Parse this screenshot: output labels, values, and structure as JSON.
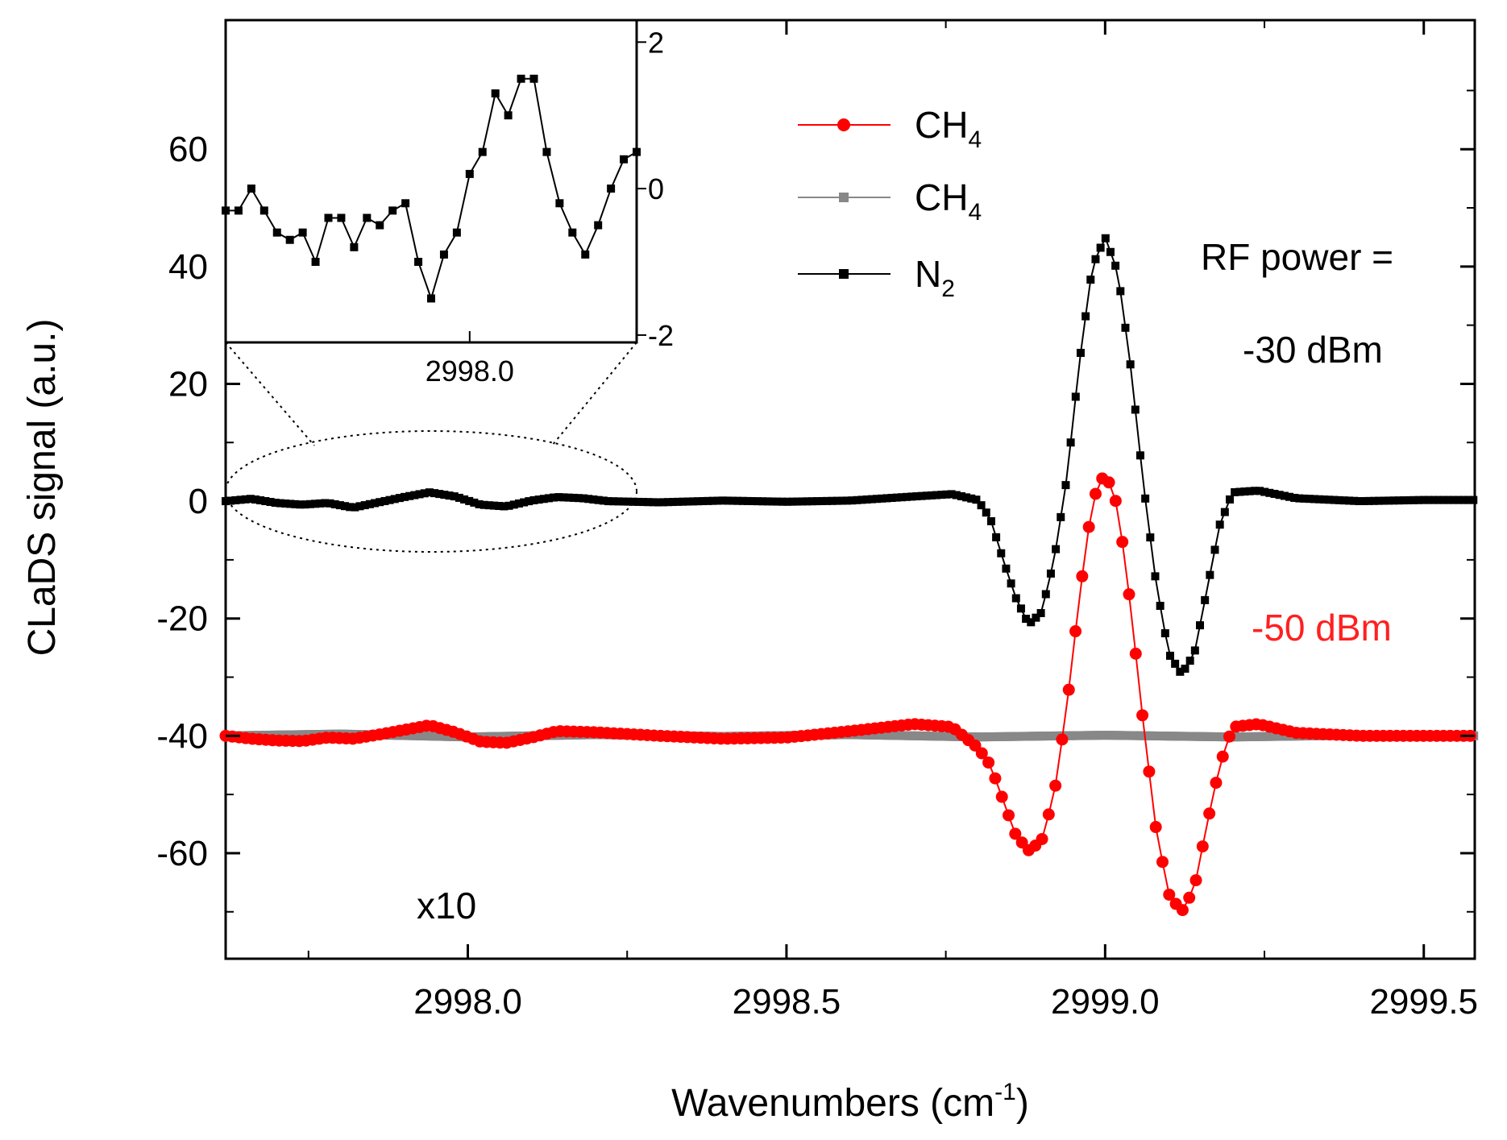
{
  "chart_data": {
    "type": "line",
    "xlabel": "Wavenumbers (cm",
    "xlabel_sup": "-1",
    "xlabel_close": ")",
    "ylabel": "CLaDS signal (a.u.)",
    "xlim": [
      2997.62,
      2999.58
    ],
    "ylim": [
      -78,
      82
    ],
    "x_ticks": [
      2998.0,
      2998.5,
      2999.0,
      2999.5
    ],
    "x_tick_labels": [
      "2998.0",
      "2998.5",
      "2999.0",
      "2999.5"
    ],
    "y_ticks": [
      -60,
      -40,
      -20,
      0,
      20,
      40,
      60
    ],
    "y_tick_labels": [
      "-60",
      "-40",
      "-20",
      "0",
      "20",
      "40",
      "60"
    ],
    "legend": [
      {
        "label": "CH",
        "sub": "4",
        "color": "#ff0000",
        "marker": "circle",
        "series": "CH4 (-50 dBm)"
      },
      {
        "label": "CH",
        "sub": "4",
        "color": "#888888",
        "marker": "square",
        "series": "CH4 (-30 dBm)"
      },
      {
        "label": "N",
        "sub": "2",
        "color": "#000000",
        "marker": "square",
        "series": "N2 (x10)"
      }
    ],
    "annotations": {
      "rf_power_label": "RF power =",
      "rf_power_high": "-30 dBm",
      "rf_power_low": "-50 dBm",
      "rf_power_low_color": "#ff2020",
      "scale_note": "x10"
    },
    "series": [
      {
        "name": "N2 (x10)",
        "color": "#000000",
        "marker": "square",
        "offset": 0,
        "points": [
          [
            2997.62,
            0.0
          ],
          [
            2997.66,
            0.4
          ],
          [
            2997.7,
            -0.3
          ],
          [
            2997.74,
            -0.6
          ],
          [
            2997.78,
            -0.3
          ],
          [
            2997.82,
            -1.1
          ],
          [
            2997.86,
            -0.2
          ],
          [
            2997.9,
            0.7
          ],
          [
            2997.94,
            1.5
          ],
          [
            2997.98,
            0.8
          ],
          [
            2998.02,
            -0.6
          ],
          [
            2998.06,
            -0.9
          ],
          [
            2998.1,
            0.1
          ],
          [
            2998.14,
            0.7
          ],
          [
            2998.18,
            0.5
          ],
          [
            2998.22,
            0.0
          ],
          [
            2998.3,
            -0.2
          ],
          [
            2998.4,
            0.1
          ],
          [
            2998.5,
            -0.1
          ],
          [
            2998.6,
            0.1
          ],
          [
            2998.7,
            0.8
          ],
          [
            2998.76,
            1.2
          ],
          [
            2998.8,
            0.2
          ],
          [
            2998.82,
            -3.0
          ],
          [
            2998.84,
            -10.0
          ],
          [
            2998.86,
            -16.5
          ],
          [
            2998.88,
            -21.0
          ],
          [
            2998.9,
            -19.0
          ],
          [
            2998.92,
            -10.0
          ],
          [
            2998.94,
            4.0
          ],
          [
            2998.96,
            24.0
          ],
          [
            2998.98,
            40.0
          ],
          [
            2999.0,
            45.0
          ],
          [
            2999.02,
            39.0
          ],
          [
            2999.04,
            23.0
          ],
          [
            2999.06,
            3.0
          ],
          [
            2999.08,
            -14.0
          ],
          [
            2999.1,
            -26.0
          ],
          [
            2999.12,
            -29.5
          ],
          [
            2999.14,
            -26.0
          ],
          [
            2999.16,
            -15.0
          ],
          [
            2999.18,
            -4.0
          ],
          [
            2999.2,
            1.5
          ],
          [
            2999.24,
            1.8
          ],
          [
            2999.3,
            0.5
          ],
          [
            2999.4,
            0.0
          ],
          [
            2999.5,
            0.2
          ],
          [
            2999.58,
            0.2
          ]
        ]
      },
      {
        "name": "CH4 (-50 dBm)",
        "color": "#ff0000",
        "marker": "circle",
        "offset": -40,
        "points": [
          [
            2997.62,
            0.0
          ],
          [
            2997.66,
            -0.5
          ],
          [
            2997.7,
            -0.8
          ],
          [
            2997.74,
            -0.9
          ],
          [
            2997.78,
            -0.3
          ],
          [
            2997.82,
            -0.5
          ],
          [
            2997.86,
            0.2
          ],
          [
            2997.9,
            1.0
          ],
          [
            2997.94,
            1.8
          ],
          [
            2997.98,
            0.6
          ],
          [
            2998.02,
            -1.0
          ],
          [
            2998.06,
            -1.2
          ],
          [
            2998.1,
            -0.3
          ],
          [
            2998.14,
            0.8
          ],
          [
            2998.2,
            0.6
          ],
          [
            2998.3,
            0.0
          ],
          [
            2998.4,
            -0.5
          ],
          [
            2998.5,
            -0.3
          ],
          [
            2998.6,
            0.8
          ],
          [
            2998.7,
            2.0
          ],
          [
            2998.76,
            1.5
          ],
          [
            2998.8,
            -2.0
          ],
          [
            2998.82,
            -5.0
          ],
          [
            2998.84,
            -11.0
          ],
          [
            2998.86,
            -17.0
          ],
          [
            2998.88,
            -19.5
          ],
          [
            2998.9,
            -18.0
          ],
          [
            2998.92,
            -10.0
          ],
          [
            2998.94,
            5.0
          ],
          [
            2998.96,
            24.0
          ],
          [
            2998.98,
            40.0
          ],
          [
            2999.0,
            45.0
          ],
          [
            2999.02,
            39.0
          ],
          [
            2999.04,
            22.0
          ],
          [
            2999.06,
            2.0
          ],
          [
            2999.08,
            -16.0
          ],
          [
            2999.1,
            -27.0
          ],
          [
            2999.12,
            -30.0
          ],
          [
            2999.14,
            -26.0
          ],
          [
            2999.16,
            -15.0
          ],
          [
            2999.18,
            -5.0
          ],
          [
            2999.2,
            1.5
          ],
          [
            2999.24,
            2.0
          ],
          [
            2999.3,
            0.5
          ],
          [
            2999.4,
            0.0
          ],
          [
            2999.5,
            0.0
          ],
          [
            2999.58,
            0.0
          ]
        ]
      },
      {
        "name": "CH4 (-30 dBm)",
        "color": "#888888",
        "marker": "square",
        "offset": -40,
        "points": [
          [
            2997.62,
            0.0
          ],
          [
            2997.8,
            0.3
          ],
          [
            2998.0,
            -0.2
          ],
          [
            2998.2,
            0.2
          ],
          [
            2998.4,
            -0.1
          ],
          [
            2998.6,
            0.2
          ],
          [
            2998.8,
            -0.2
          ],
          [
            2999.0,
            0.1
          ],
          [
            2999.2,
            -0.2
          ],
          [
            2999.4,
            0.1
          ],
          [
            2999.58,
            0.0
          ]
        ]
      }
    ],
    "inset": {
      "xlim": [
        2997.62,
        2998.26
      ],
      "ylim": [
        -2.1,
        2.3
      ],
      "x_ticks": [
        2998.0
      ],
      "x_tick_labels": [
        "2998.0"
      ],
      "y_ticks": [
        -2,
        0,
        2
      ],
      "y_tick_labels": [
        "-2",
        "0",
        "2"
      ],
      "series_name": "N2 (x10) zoom",
      "points": [
        [
          2997.62,
          -0.3
        ],
        [
          2997.64,
          -0.3
        ],
        [
          2997.66,
          0.0
        ],
        [
          2997.68,
          -0.3
        ],
        [
          2997.7,
          -0.6
        ],
        [
          2997.72,
          -0.7
        ],
        [
          2997.74,
          -0.6
        ],
        [
          2997.76,
          -1.0
        ],
        [
          2997.78,
          -0.4
        ],
        [
          2997.8,
          -0.4
        ],
        [
          2997.82,
          -0.8
        ],
        [
          2997.84,
          -0.4
        ],
        [
          2997.86,
          -0.5
        ],
        [
          2997.88,
          -0.3
        ],
        [
          2997.9,
          -0.2
        ],
        [
          2997.92,
          -1.0
        ],
        [
          2997.94,
          -1.5
        ],
        [
          2997.96,
          -0.9
        ],
        [
          2997.98,
          -0.6
        ],
        [
          2998.0,
          0.2
        ],
        [
          2998.02,
          0.5
        ],
        [
          2998.04,
          1.3
        ],
        [
          2998.06,
          1.0
        ],
        [
          2998.08,
          1.5
        ],
        [
          2998.1,
          1.5
        ],
        [
          2998.12,
          0.5
        ],
        [
          2998.14,
          -0.2
        ],
        [
          2998.16,
          -0.6
        ],
        [
          2998.18,
          -0.9
        ],
        [
          2998.2,
          -0.5
        ],
        [
          2998.22,
          0.0
        ],
        [
          2998.24,
          0.4
        ],
        [
          2998.26,
          0.5
        ]
      ]
    }
  }
}
